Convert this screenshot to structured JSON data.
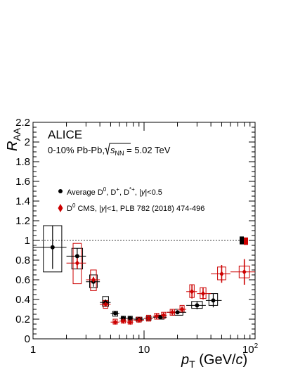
{
  "chart_data": {
    "type": "scatter",
    "experiment": "ALICE",
    "system_label": "0-10% Pb-Pb, √s_NN = 5.02 TeV",
    "system_label_parts": {
      "prefix": "0-10% Pb-Pb, ",
      "sqrt_s": "s",
      "sqrt_s_sub": "NN",
      "suffix": " = 5.02 TeV"
    },
    "xlabel": "p_T (GeV/c)",
    "xlabel_parts": {
      "p": "p",
      "sub": "T",
      "unit_open": " (GeV/",
      "unit_c": "c",
      "unit_close": ")"
    },
    "ylabel": "R_AA",
    "ylabel_parts": {
      "r": "R",
      "sub": "AA"
    },
    "x_scale": "log",
    "xlim": [
      1,
      100
    ],
    "ylim": [
      0,
      2.2
    ],
    "x_ticks": [
      {
        "value": 1,
        "label": "1"
      },
      {
        "value": 10,
        "label": "10"
      },
      {
        "value": 100,
        "label": "10",
        "sup": "2"
      }
    ],
    "y_ticks": [
      {
        "value": 0,
        "label": "0"
      },
      {
        "value": 0.2,
        "label": "0.2"
      },
      {
        "value": 0.4,
        "label": "0.4"
      },
      {
        "value": 0.6,
        "label": "0.6"
      },
      {
        "value": 0.8,
        "label": "0.8"
      },
      {
        "value": 1.0,
        "label": "1"
      },
      {
        "value": 1.2,
        "label": "1.2"
      },
      {
        "value": 1.4,
        "label": "1.4"
      },
      {
        "value": 1.6,
        "label": "1.6"
      },
      {
        "value": 1.8,
        "label": "1.8"
      },
      {
        "value": 2.0,
        "label": "2"
      },
      {
        "value": 2.2,
        "label": "2.2"
      }
    ],
    "reference_line": {
      "y": 1.0,
      "style": "dotted"
    },
    "normalization_boxes": [
      {
        "color": "#000000",
        "ylow": 0.96,
        "yhigh": 1.04
      },
      {
        "color": "#cc0000",
        "ylow": 0.955,
        "yhigh": 1.03
      }
    ],
    "legend": {
      "placement": "top-left",
      "entries": [
        {
          "series": 0,
          "label": "Average D0, D+, D*+, |y|<0.5",
          "parts": {
            "a": "Average D",
            "a_sup": "0",
            "b": ", D",
            "b_sup": "+",
            "c": ", D",
            "c_sup": "*+",
            "d": ", |",
            "y": "y",
            "e": "|<0.5"
          }
        },
        {
          "series": 1,
          "label": "D0 CMS, |y|<1, PLB 782 (2018) 474-496",
          "parts": {
            "a": "D",
            "a_sup": "0",
            "b": " CMS, |",
            "y": "y",
            "c": "|<1, PLB 782 (2018) 474-496"
          }
        }
      ]
    },
    "series": [
      {
        "name": "Average D0, D+, D*+, |y|<0.5",
        "color": "#000000",
        "marker": "circle",
        "points": [
          {
            "x": 1.5,
            "xlo": 1.0,
            "xhi": 2.0,
            "y": 0.93,
            "stat": 0.22,
            "syslo": 0.68,
            "syshi": 1.15
          },
          {
            "x": 2.5,
            "xlo": 2.0,
            "xhi": 3.0,
            "y": 0.84,
            "stat": 0.08,
            "syslo": 0.71,
            "syshi": 0.92
          },
          {
            "x": 3.5,
            "xlo": 3.0,
            "xhi": 4.0,
            "y": 0.58,
            "stat": 0.05,
            "syslo": 0.52,
            "syshi": 0.65
          },
          {
            "x": 4.5,
            "xlo": 4.0,
            "xhi": 5.0,
            "y": 0.37,
            "stat": 0.03,
            "syslo": 0.33,
            "syshi": 0.43
          },
          {
            "x": 5.5,
            "xlo": 5.0,
            "xhi": 6.0,
            "y": 0.26,
            "stat": 0.02,
            "syslo": 0.23,
            "syshi": 0.28
          },
          {
            "x": 6.5,
            "xlo": 6.0,
            "xhi": 7.0,
            "y": 0.21,
            "stat": 0.02,
            "syslo": 0.19,
            "syshi": 0.23
          },
          {
            "x": 7.5,
            "xlo": 7.0,
            "xhi": 8.0,
            "y": 0.21,
            "stat": 0.02,
            "syslo": 0.19,
            "syshi": 0.23
          },
          {
            "x": 9.0,
            "xlo": 8.0,
            "xhi": 10.0,
            "y": 0.2,
            "stat": 0.01,
            "syslo": 0.18,
            "syshi": 0.22
          },
          {
            "x": 11.0,
            "xlo": 10.0,
            "xhi": 12.0,
            "y": 0.21,
            "stat": 0.02,
            "syslo": 0.19,
            "syshi": 0.23
          },
          {
            "x": 14.0,
            "xlo": 12.0,
            "xhi": 16.0,
            "y": 0.22,
            "stat": 0.02,
            "syslo": 0.2,
            "syshi": 0.24
          },
          {
            "x": 20.0,
            "xlo": 16.0,
            "xhi": 24.0,
            "y": 0.27,
            "stat": 0.02,
            "syslo": 0.24,
            "syshi": 0.3
          },
          {
            "x": 30.0,
            "xlo": 24.0,
            "xhi": 36.0,
            "y": 0.34,
            "stat": 0.04,
            "syslo": 0.31,
            "syshi": 0.38
          },
          {
            "x": 42.0,
            "xlo": 36.0,
            "xhi": 50.0,
            "y": 0.39,
            "stat": 0.07,
            "syslo": 0.34,
            "syshi": 0.46
          }
        ]
      },
      {
        "name": "D0 CMS, |y|<1, PLB 782 (2018) 474-496",
        "color": "#cc0000",
        "marker": "diamond",
        "points": [
          {
            "x": 2.5,
            "xlo": 2.0,
            "xhi": 3.0,
            "y": 0.77,
            "stat": 0.06,
            "syslo": 0.56,
            "syshi": 0.97
          },
          {
            "x": 3.5,
            "xlo": 3.0,
            "xhi": 4.0,
            "y": 0.6,
            "stat": 0.03,
            "syslo": 0.49,
            "syshi": 0.7
          },
          {
            "x": 4.5,
            "xlo": 4.0,
            "xhi": 5.0,
            "y": 0.35,
            "stat": 0.02,
            "syslo": 0.31,
            "syshi": 0.39
          },
          {
            "x": 5.5,
            "xlo": 5.0,
            "xhi": 6.0,
            "y": 0.17,
            "stat": 0.01,
            "syslo": 0.15,
            "syshi": 0.2
          },
          {
            "x": 6.5,
            "xlo": 6.0,
            "xhi": 7.0,
            "y": 0.18,
            "stat": 0.01,
            "syslo": 0.16,
            "syshi": 0.21
          },
          {
            "x": 7.5,
            "xlo": 7.0,
            "xhi": 8.0,
            "y": 0.17,
            "stat": 0.01,
            "syslo": 0.15,
            "syshi": 0.2
          },
          {
            "x": 9.0,
            "xlo": 8.0,
            "xhi": 10.0,
            "y": 0.19,
            "stat": 0.01,
            "syslo": 0.17,
            "syshi": 0.22
          },
          {
            "x": 11.0,
            "xlo": 10.0,
            "xhi": 12.0,
            "y": 0.21,
            "stat": 0.01,
            "syslo": 0.18,
            "syshi": 0.24
          },
          {
            "x": 13.0,
            "xlo": 12.0,
            "xhi": 14.0,
            "y": 0.23,
            "stat": 0.02,
            "syslo": 0.2,
            "syshi": 0.26
          },
          {
            "x": 15.0,
            "xlo": 14.0,
            "xhi": 16.0,
            "y": 0.24,
            "stat": 0.02,
            "syslo": 0.21,
            "syshi": 0.27
          },
          {
            "x": 18.0,
            "xlo": 16.0,
            "xhi": 20.0,
            "y": 0.27,
            "stat": 0.02,
            "syslo": 0.24,
            "syshi": 0.3
          },
          {
            "x": 22.0,
            "xlo": 20.0,
            "xhi": 24.0,
            "y": 0.3,
            "stat": 0.03,
            "syslo": 0.27,
            "syshi": 0.34
          },
          {
            "x": 27.0,
            "xlo": 24.0,
            "xhi": 30.0,
            "y": 0.48,
            "stat": 0.07,
            "syslo": 0.42,
            "syshi": 0.55
          },
          {
            "x": 34.0,
            "xlo": 30.0,
            "xhi": 40.0,
            "y": 0.46,
            "stat": 0.06,
            "syslo": 0.41,
            "syshi": 0.52
          },
          {
            "x": 50.0,
            "xlo": 40.0,
            "xhi": 60.0,
            "y": 0.66,
            "stat": 0.09,
            "syslo": 0.6,
            "syshi": 0.73
          },
          {
            "x": 80.0,
            "xlo": 60.0,
            "xhi": 100.0,
            "y": 0.68,
            "stat": 0.13,
            "syslo": 0.62,
            "syshi": 0.74
          }
        ]
      }
    ]
  }
}
